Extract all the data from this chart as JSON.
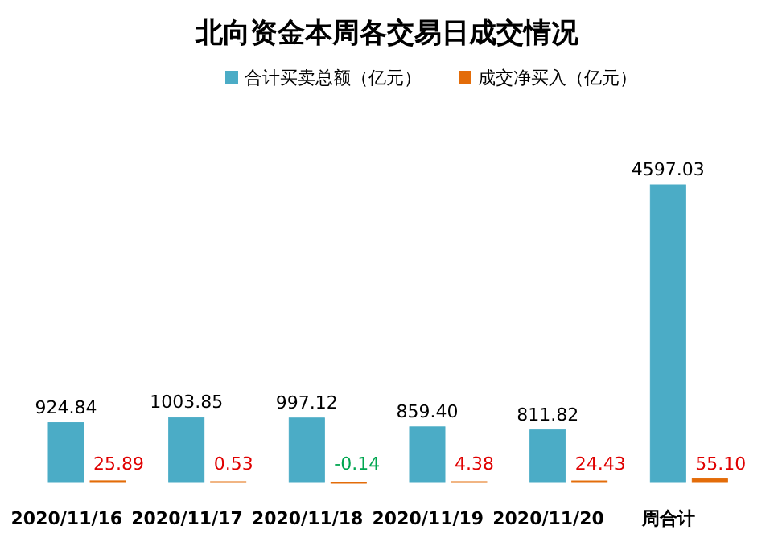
{
  "chart_data": {
    "type": "bar",
    "title": "北向资金本周各交易日成交情况",
    "legend": "top",
    "categories": [
      "2020/11/16",
      "2020/11/17",
      "2020/11/18",
      "2020/11/19",
      "2020/11/20",
      "周合计"
    ],
    "series": [
      {
        "name": "合计买卖总额（亿元）",
        "color": "#4bacc6",
        "values": [
          924.84,
          1003.85,
          997.12,
          859.4,
          811.82,
          4597.03
        ],
        "value_labels": [
          "924.84",
          "1003.85",
          "997.12",
          "859.40",
          "811.82",
          "4597.03"
        ]
      },
      {
        "name": "成交净买入（亿元）",
        "color": "#e36c09",
        "values": [
          25.89,
          0.53,
          -0.14,
          4.38,
          24.43,
          55.1
        ],
        "value_labels": [
          "25.89",
          "0.53",
          "-0.14",
          "4.38",
          "24.43",
          "55.10"
        ]
      }
    ]
  }
}
